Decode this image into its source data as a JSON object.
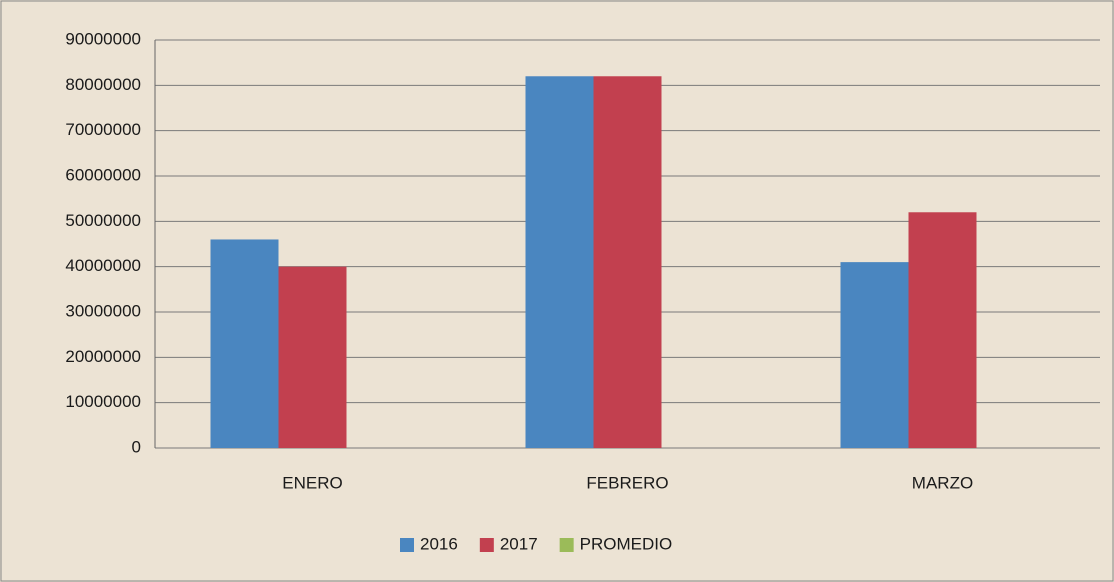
{
  "chart_data": {
    "type": "bar",
    "categories": [
      "ENERO",
      "FEBRERO",
      "MARZO"
    ],
    "series": [
      {
        "name": "2016",
        "color": "#4a86c0",
        "values": [
          46000000,
          82000000,
          41000000
        ]
      },
      {
        "name": "2017",
        "color": "#c2404f",
        "values": [
          40000000,
          82000000,
          52000000
        ]
      },
      {
        "name": "PROMEDIO",
        "color": "#9bbb59",
        "values": [
          null,
          null,
          null
        ]
      }
    ],
    "ylim": [
      0,
      90000000
    ],
    "yticks": [
      0,
      10000000,
      20000000,
      30000000,
      40000000,
      50000000,
      60000000,
      70000000,
      80000000,
      90000000
    ],
    "grid": true,
    "legend": "bottom"
  }
}
